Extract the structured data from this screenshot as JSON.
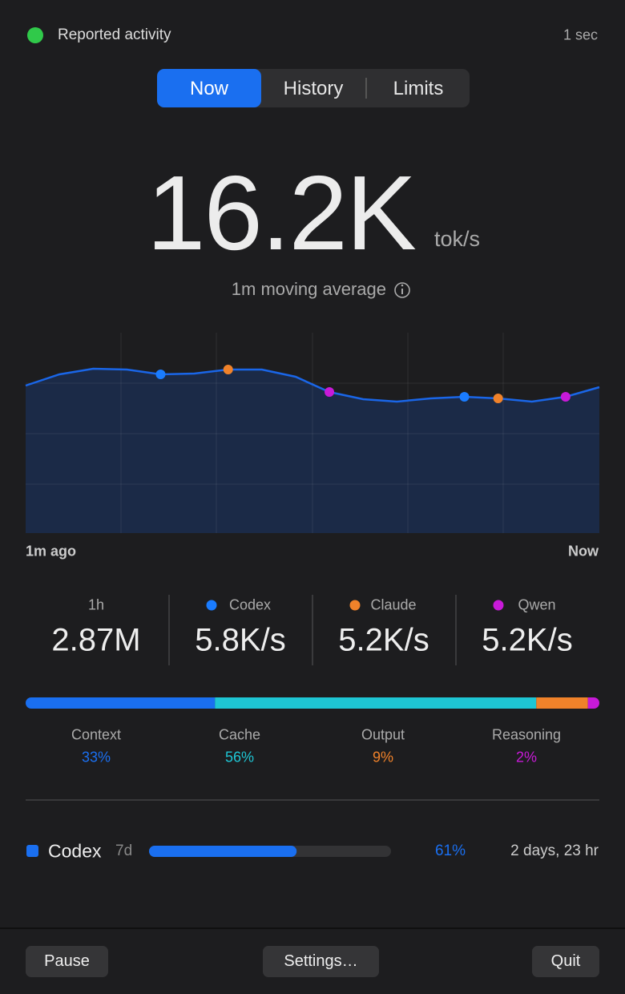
{
  "status": {
    "label": "Reported activity",
    "age": "1 sec"
  },
  "tabs": [
    "Now",
    "History",
    "Limits"
  ],
  "active_tab": 0,
  "rate": {
    "value": "16.2K",
    "unit": "tok/s",
    "caption": "1m moving average"
  },
  "chart_data": {
    "type": "area",
    "x_labels": [
      "1m ago",
      "Now"
    ],
    "values": [
      73.6,
      79.2,
      82,
      81.6,
      79.2,
      79.6,
      81.6,
      81.6,
      78,
      70.4,
      66.8,
      65.6,
      67.2,
      68,
      67.2,
      65.6,
      68,
      72.8
    ],
    "ylim": [
      0,
      100
    ],
    "color": "#1a66e8",
    "grid": true,
    "markers": [
      {
        "index": 4,
        "color": "#1a7cff"
      },
      {
        "index": 6,
        "color": "#f0822a"
      },
      {
        "index": 9,
        "color": "#c81ad8"
      },
      {
        "index": 13,
        "color": "#1a7cff"
      },
      {
        "index": 14,
        "color": "#f0822a"
      },
      {
        "index": 16,
        "color": "#c81ad8"
      }
    ]
  },
  "stats": [
    {
      "label": "1h",
      "value": "2.87M"
    },
    {
      "label": "Codex",
      "color": "#1a7cff",
      "value": "5.8K/s"
    },
    {
      "label": "Claude",
      "color": "#f0822a",
      "value": "5.2K/s"
    },
    {
      "label": "Qwen",
      "color": "#c81ad8",
      "value": "5.2K/s"
    }
  ],
  "breakdown": {
    "type": "stacked-bar",
    "categories": [
      "Context",
      "Cache",
      "Output",
      "Reasoning"
    ],
    "values": [
      33,
      56,
      9,
      2
    ],
    "value_labels": [
      "33%",
      "56%",
      "9%",
      "2%"
    ],
    "colors": [
      "#1a6ff0",
      "#1ec6d4",
      "#f0822a",
      "#c81ad8"
    ]
  },
  "limits": [
    {
      "name": "Codex",
      "period": "7d",
      "value": 61,
      "value_label": "61%",
      "reset": "2 days, 23 hr",
      "color": "#1a6ff0"
    }
  ],
  "buttons": [
    "Pause",
    "Settings…",
    "Quit"
  ]
}
